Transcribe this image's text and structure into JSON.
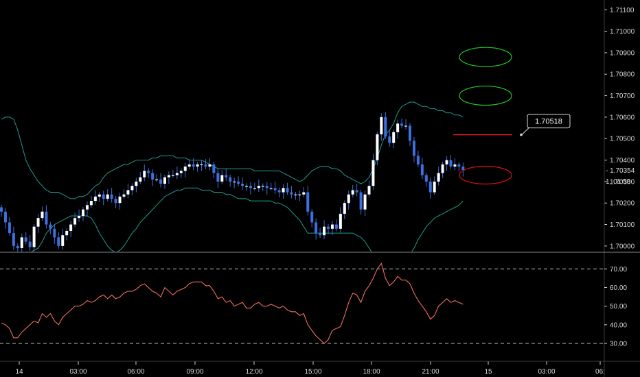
{
  "chart_data": {
    "type": "candlestick",
    "colors": {
      "background": "#000000",
      "bullish": "#ffffff",
      "bearish": "#3d6fe0",
      "bands": "#1f9c8c",
      "rsi": "#f07060",
      "level": "#ff2020",
      "green_target": "#22cc22",
      "red_target": "#dd1111",
      "axis": "#d8d8d8",
      "dashed": "#bbbbbb"
    },
    "price_axis": {
      "ticks": [
        "1.71100",
        "1.71000",
        "1.70900",
        "1.70800",
        "1.70700",
        "1.70600",
        "1.70500",
        "1.70400",
        "1.70300",
        "1.70200",
        "1.70100",
        "1.70000"
      ],
      "range": [
        1.6999,
        1.7112
      ],
      "current_price": "1.70354",
      "countdown": "01:58",
      "countdown_prefix": "1,"
    },
    "level_label": "1.70518",
    "level_price": 1.70518,
    "rsi_axis": {
      "ticks": [
        "70.00",
        "60.00",
        "50.00",
        "40.00",
        "30.00"
      ],
      "range": [
        23,
        76
      ],
      "overbought": 70,
      "oversold": 30
    },
    "time_axis": [
      "14",
      "03:00",
      "06:00",
      "09:00",
      "12:00",
      "15:00",
      "18:00",
      "21:00",
      "15",
      "03:00",
      "06:"
    ],
    "candles": {
      "close": [
        1.7016,
        1.7011,
        1.7006,
        1.7,
        1.6999,
        1.7004,
        1.7002,
        1.69995,
        1.7009,
        1.7013,
        1.7016,
        1.701,
        1.7008,
        1.7004,
        1.7,
        1.7005,
        1.7007,
        1.701,
        1.7013,
        1.7014,
        1.7017,
        1.7019,
        1.7021,
        1.7023,
        1.7024,
        1.7022,
        1.7024,
        1.7022,
        1.702,
        1.7023,
        1.7024,
        1.7026,
        1.7028,
        1.703,
        1.7032,
        1.7035,
        1.7034,
        1.7031,
        1.7031,
        1.7029,
        1.7032,
        1.7033,
        1.7033,
        1.7034,
        1.7035,
        1.7037,
        1.7038,
        1.7037,
        1.7038,
        1.7038,
        1.7037,
        1.7038,
        1.7034,
        1.703,
        1.7033,
        1.7032,
        1.703,
        1.703,
        1.7029,
        1.7028,
        1.7028,
        1.7027,
        1.7027,
        1.7028,
        1.7028,
        1.7027,
        1.7027,
        1.7026,
        1.7025,
        1.7027,
        1.7025,
        1.7024,
        1.7024,
        1.7024,
        1.7025,
        1.7016,
        1.7011,
        1.7006,
        1.7005,
        1.7009,
        1.7008,
        1.701,
        1.7008,
        1.7015,
        1.702,
        1.7024,
        1.7026,
        1.7025,
        1.7017,
        1.7024,
        1.7028,
        1.704,
        1.7052,
        1.706,
        1.7051,
        1.7048,
        1.7053,
        1.7057,
        1.7056,
        1.7056,
        1.7049,
        1.7042,
        1.7038,
        1.7033,
        1.703,
        1.7025,
        1.703,
        1.7034,
        1.7038,
        1.704,
        1.7037,
        1.7038,
        1.7037,
        1.70354
      ],
      "open": [
        1.7018,
        1.7016,
        1.7011,
        1.7006,
        1.7,
        1.6999,
        1.7004,
        1.7002,
        1.69995,
        1.7009,
        1.7013,
        1.7016,
        1.701,
        1.7008,
        1.7004,
        1.7,
        1.7005,
        1.7007,
        1.701,
        1.7013,
        1.7014,
        1.7017,
        1.7019,
        1.7021,
        1.7023,
        1.7024,
        1.7022,
        1.7024,
        1.7022,
        1.702,
        1.7023,
        1.7024,
        1.7026,
        1.7028,
        1.703,
        1.7032,
        1.7035,
        1.7034,
        1.7031,
        1.7031,
        1.7029,
        1.7032,
        1.7033,
        1.7033,
        1.7034,
        1.7035,
        1.7037,
        1.7038,
        1.7037,
        1.7038,
        1.7038,
        1.7037,
        1.7038,
        1.7034,
        1.703,
        1.7033,
        1.7032,
        1.703,
        1.703,
        1.7029,
        1.7028,
        1.7028,
        1.7027,
        1.7027,
        1.7028,
        1.7028,
        1.7027,
        1.7027,
        1.7026,
        1.7025,
        1.7027,
        1.7025,
        1.7024,
        1.7024,
        1.7024,
        1.7025,
        1.7016,
        1.7011,
        1.7006,
        1.7005,
        1.7009,
        1.7008,
        1.701,
        1.7008,
        1.7015,
        1.702,
        1.7024,
        1.7026,
        1.7025,
        1.7017,
        1.7024,
        1.7028,
        1.704,
        1.7052,
        1.706,
        1.7051,
        1.7048,
        1.7053,
        1.7057,
        1.7056,
        1.7056,
        1.7049,
        1.7042,
        1.7038,
        1.7033,
        1.703,
        1.7025,
        1.703,
        1.7034,
        1.7038,
        1.704,
        1.7037,
        1.7038,
        1.7037
      ]
    },
    "bollinger": {
      "upper": [
        1.7059,
        1.706,
        1.706,
        1.7059,
        1.7054,
        1.7047,
        1.704,
        1.7036,
        1.7033,
        1.703,
        1.7028,
        1.7026,
        1.7025,
        1.7025,
        1.7025,
        1.7024,
        1.7023,
        1.7022,
        1.7022,
        1.7023,
        1.7023,
        1.7024,
        1.7026,
        1.7028,
        1.7029,
        1.7032,
        1.7034,
        1.7035,
        1.7036,
        1.7037,
        1.7038,
        1.7038,
        1.7039,
        1.704,
        1.704,
        1.704,
        1.704,
        1.7041,
        1.7041,
        1.7042,
        1.7042,
        1.7042,
        1.7042,
        1.7041,
        1.7041,
        1.7041,
        1.704,
        1.704,
        1.704,
        1.704,
        1.7039,
        1.7038,
        1.7037,
        1.7036,
        1.7036,
        1.7036,
        1.7036,
        1.7036,
        1.7036,
        1.7036,
        1.7036,
        1.7036,
        1.7035,
        1.7035,
        1.7035,
        1.7035,
        1.7035,
        1.7035,
        1.7035,
        1.7034,
        1.7033,
        1.7032,
        1.7031,
        1.703,
        1.7031,
        1.7033,
        1.7035,
        1.7036,
        1.7037,
        1.7037,
        1.7037,
        1.7036,
        1.7036,
        1.7035,
        1.7033,
        1.7032,
        1.7031,
        1.703,
        1.7029,
        1.703,
        1.7032,
        1.7036,
        1.7041,
        1.7047,
        1.7052,
        1.7054,
        1.7057,
        1.7062,
        1.7065,
        1.7066,
        1.7067,
        1.7067,
        1.7066,
        1.7065,
        1.7065,
        1.7064,
        1.7064,
        1.7063,
        1.7063,
        1.7062,
        1.7062,
        1.7061,
        1.7061,
        1.706
      ],
      "lower": [
        1.6992,
        1.6992,
        1.6992,
        1.6993,
        1.6994,
        1.6995,
        1.6996,
        1.6997,
        1.6998,
        1.6999,
        1.7002,
        1.7006,
        1.7008,
        1.701,
        1.7011,
        1.7012,
        1.7013,
        1.7014,
        1.7014,
        1.7014,
        1.7014,
        1.7014,
        1.7013,
        1.701,
        1.7006,
        1.7003,
        1.7,
        1.6998,
        1.6997,
        1.6998,
        1.7,
        1.7003,
        1.7006,
        1.7008,
        1.7011,
        1.7013,
        1.7015,
        1.7017,
        1.7019,
        1.7021,
        1.7023,
        1.7024,
        1.7025,
        1.7026,
        1.7026,
        1.7027,
        1.7027,
        1.7027,
        1.7027,
        1.7026,
        1.7026,
        1.7026,
        1.7025,
        1.7025,
        1.7025,
        1.7024,
        1.7024,
        1.7023,
        1.7022,
        1.7022,
        1.7022,
        1.7021,
        1.7021,
        1.7021,
        1.7021,
        1.7021,
        1.7021,
        1.702,
        1.702,
        1.7019,
        1.7018,
        1.7016,
        1.7014,
        1.7012,
        1.7009,
        1.7006,
        1.7006,
        1.7006,
        1.7006,
        1.7006,
        1.7006,
        1.7006,
        1.7006,
        1.7006,
        1.7006,
        1.7006,
        1.7006,
        1.7005,
        1.7004,
        1.7002,
        1.6999,
        1.6996,
        1.6993,
        1.699,
        1.6988,
        1.6987,
        1.6987,
        1.6988,
        1.699,
        1.6993,
        1.6996,
        1.6999,
        1.7003,
        1.7006,
        1.7009,
        1.7011,
        1.7013,
        1.7014,
        1.7015,
        1.7016,
        1.7017,
        1.7018,
        1.7019,
        1.7021
      ]
    },
    "rsi": [
      41,
      40,
      38,
      33,
      33,
      36,
      38,
      40,
      42,
      41,
      46,
      44,
      46,
      42,
      40,
      44,
      46,
      48,
      50,
      50,
      51,
      53,
      52,
      53,
      55,
      56,
      54,
      56,
      54,
      55,
      57,
      58,
      58,
      59,
      61,
      62,
      60,
      58,
      57,
      55,
      60,
      58,
      56,
      58,
      59,
      60,
      62,
      63,
      63,
      63,
      61,
      61,
      58,
      54,
      55,
      52,
      53,
      50,
      51,
      52,
      49,
      49,
      51,
      52,
      50,
      50,
      51,
      50,
      49,
      50,
      48,
      47,
      47,
      45,
      46,
      40,
      37,
      34,
      32,
      30,
      32,
      37,
      38,
      39,
      45,
      52,
      57,
      56,
      52,
      58,
      61,
      65,
      70,
      73,
      65,
      61,
      63,
      66,
      64,
      64,
      62,
      57,
      53,
      50,
      47,
      43,
      45,
      50,
      52,
      54,
      52,
      53,
      52,
      51
    ],
    "annotations": {
      "green_targets": [
        1.7088,
        1.707
      ],
      "red_target": 1.7033
    }
  }
}
